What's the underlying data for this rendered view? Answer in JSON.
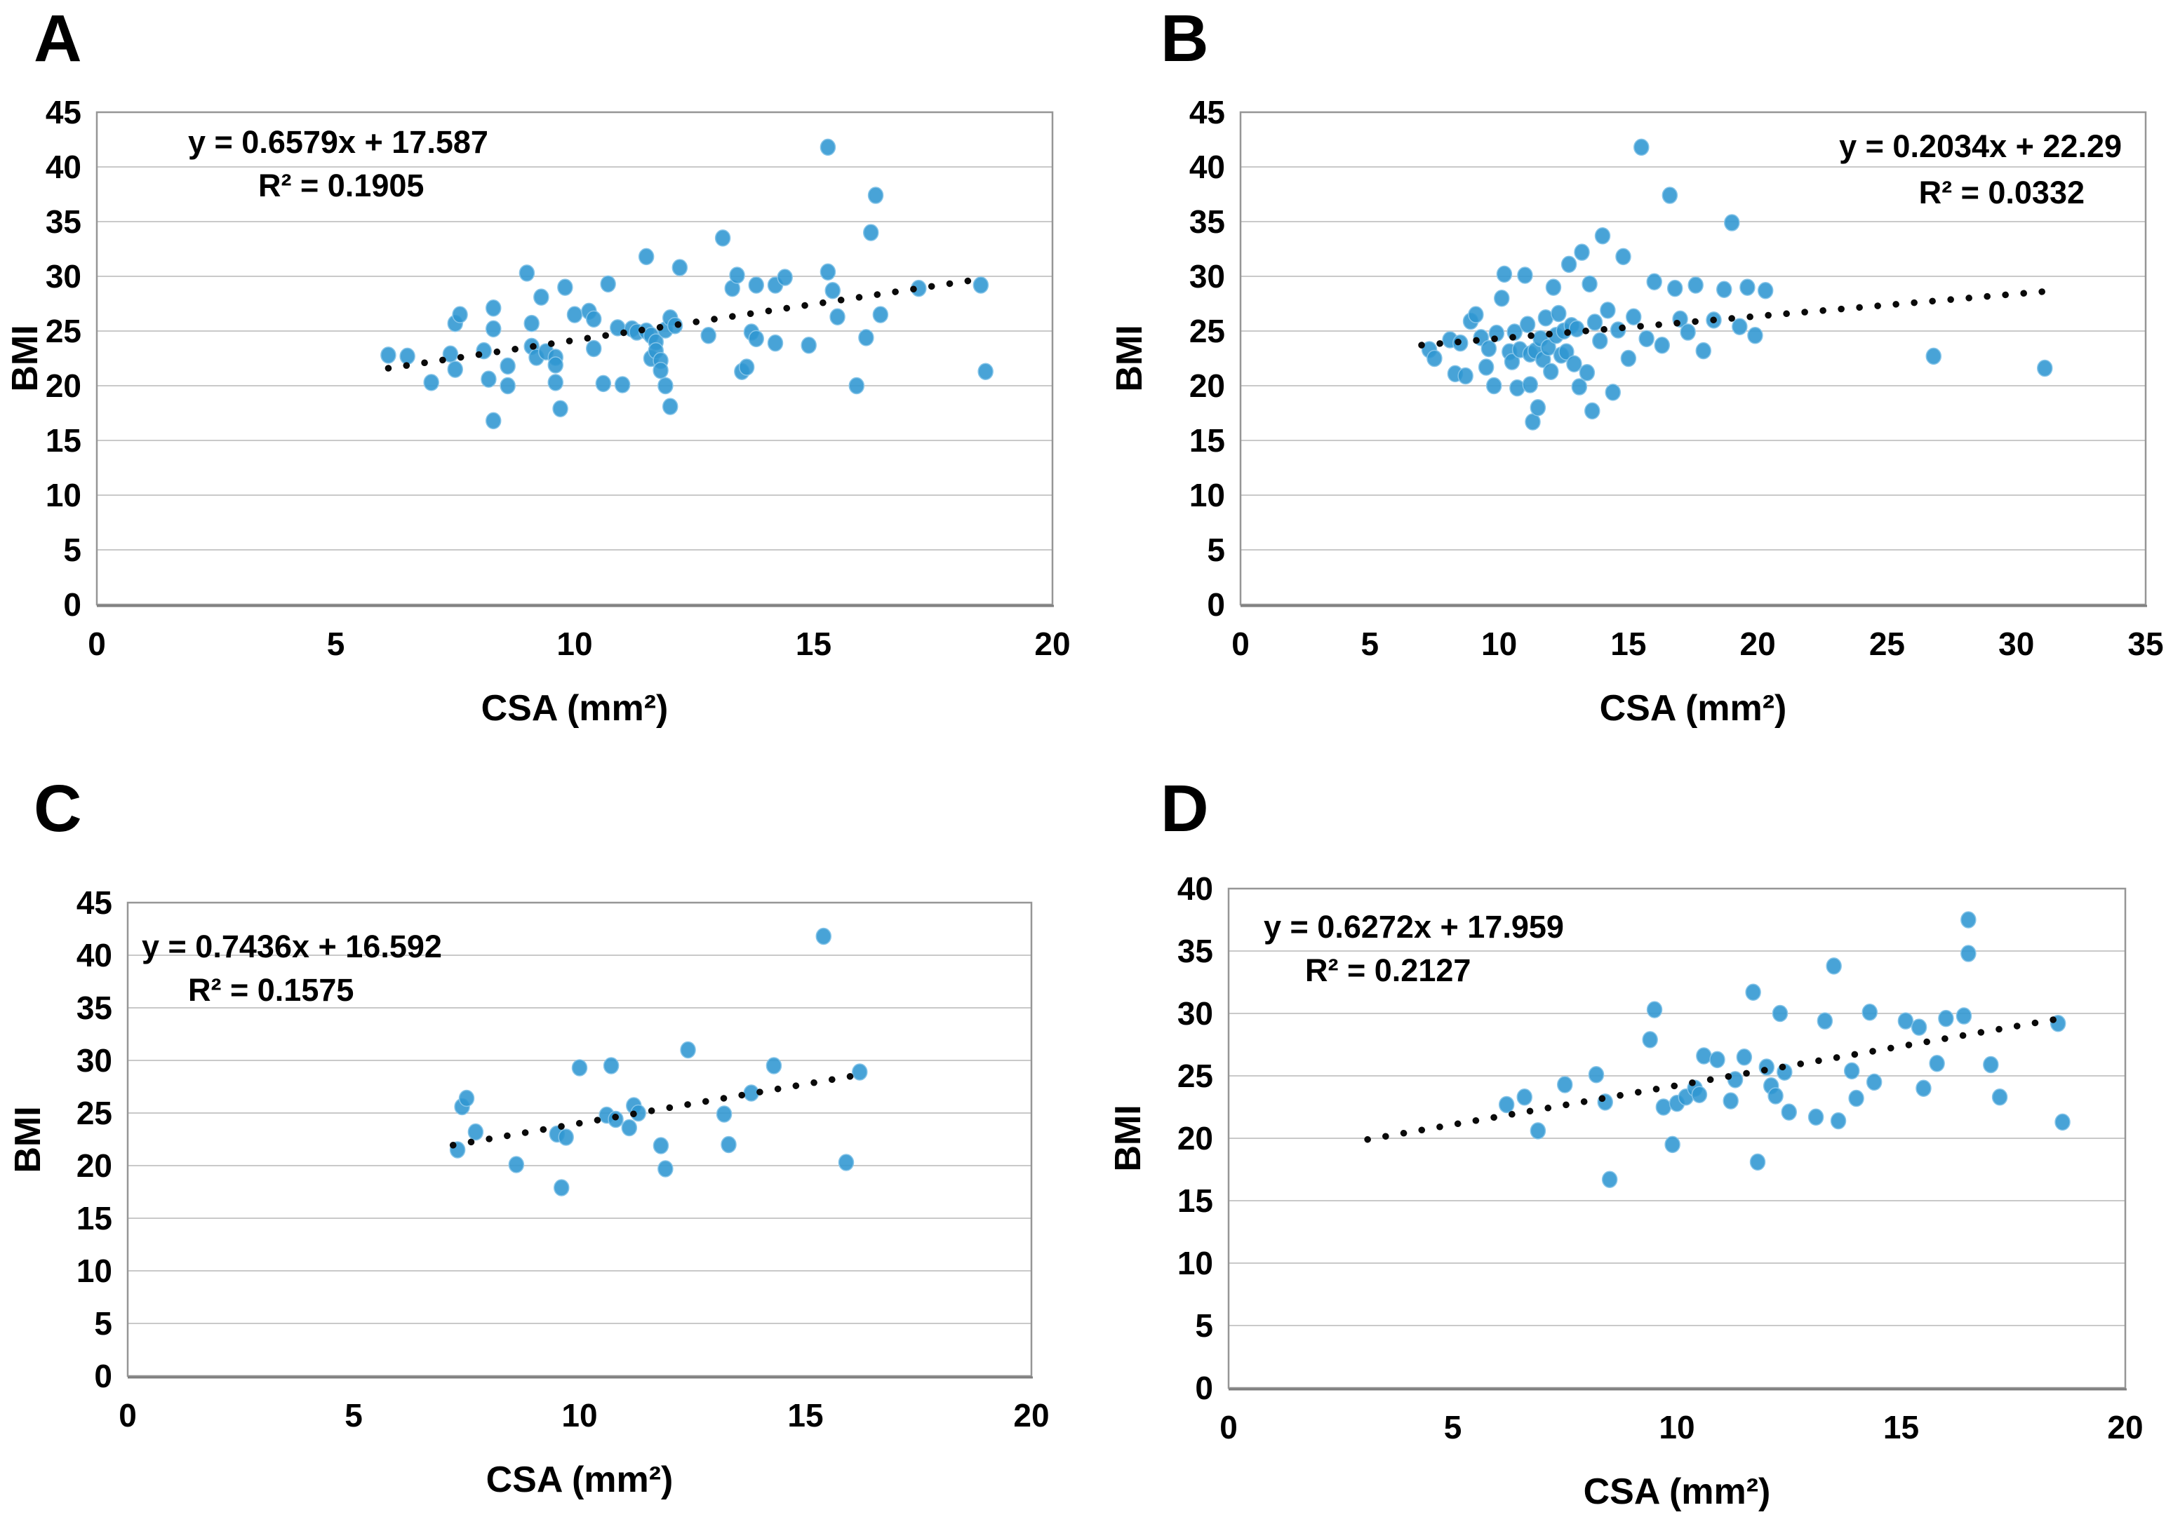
{
  "colors": {
    "marker": "#2f96d2",
    "marker_edge": "#85c4e8",
    "trendline": "#0a0a0a",
    "gridline": "#c9c9c9",
    "plot_border": "#969696",
    "axis_text": "#000000",
    "background": "#ffffff"
  },
  "chart_data": [
    {
      "type": "scatter",
      "panel_label": "A",
      "equation": "y = 0.6579x + 17.587",
      "r_squared": "R² = 0.1905",
      "equation_pos": "top-left",
      "xlabel": "CSA (mm²)",
      "ylabel": "BMI",
      "xlim": [
        0,
        20
      ],
      "ylim": [
        0,
        45
      ],
      "xticks": [
        0,
        5,
        10,
        15,
        20
      ],
      "yticks": [
        0,
        5,
        10,
        15,
        20,
        25,
        30,
        35,
        40,
        45
      ],
      "grid": "horizontal",
      "legend": "none",
      "trendline": {
        "slope": 0.6579,
        "intercept": 17.587,
        "x_start": 6.1,
        "x_end": 18.4,
        "style": "dotted"
      },
      "points": [
        [
          6.1,
          22.8
        ],
        [
          6.5,
          22.7
        ],
        [
          7.0,
          20.3
        ],
        [
          7.4,
          22.9
        ],
        [
          7.5,
          21.5
        ],
        [
          7.5,
          25.7
        ],
        [
          7.6,
          26.5
        ],
        [
          8.1,
          23.2
        ],
        [
          8.2,
          20.6
        ],
        [
          8.3,
          27.1
        ],
        [
          8.3,
          25.2
        ],
        [
          8.3,
          16.8
        ],
        [
          8.6,
          21.8
        ],
        [
          8.6,
          20.0
        ],
        [
          9.0,
          30.3
        ],
        [
          9.1,
          25.7
        ],
        [
          9.1,
          23.6
        ],
        [
          9.2,
          22.6
        ],
        [
          9.3,
          28.1
        ],
        [
          9.4,
          23.1
        ],
        [
          9.6,
          22.6
        ],
        [
          9.6,
          21.9
        ],
        [
          9.6,
          20.3
        ],
        [
          9.7,
          17.9
        ],
        [
          9.8,
          29.0
        ],
        [
          10.0,
          26.5
        ],
        [
          10.3,
          26.8
        ],
        [
          10.4,
          26.1
        ],
        [
          10.4,
          23.4
        ],
        [
          10.6,
          20.2
        ],
        [
          10.7,
          29.3
        ],
        [
          10.9,
          25.3
        ],
        [
          11.0,
          20.1
        ],
        [
          11.2,
          25.2
        ],
        [
          11.3,
          24.9
        ],
        [
          11.5,
          31.8
        ],
        [
          11.5,
          25.0
        ],
        [
          11.6,
          24.6
        ],
        [
          11.6,
          22.5
        ],
        [
          11.7,
          24.0
        ],
        [
          11.7,
          23.2
        ],
        [
          11.8,
          22.3
        ],
        [
          11.8,
          21.4
        ],
        [
          11.9,
          25.1
        ],
        [
          11.9,
          20.0
        ],
        [
          12.0,
          18.1
        ],
        [
          12.0,
          26.2
        ],
        [
          12.1,
          25.5
        ],
        [
          12.2,
          30.8
        ],
        [
          12.8,
          24.6
        ],
        [
          13.1,
          33.5
        ],
        [
          13.3,
          28.9
        ],
        [
          13.4,
          30.1
        ],
        [
          13.5,
          21.3
        ],
        [
          13.6,
          21.7
        ],
        [
          13.7,
          24.9
        ],
        [
          13.8,
          29.2
        ],
        [
          13.8,
          24.3
        ],
        [
          14.2,
          29.2
        ],
        [
          14.2,
          23.9
        ],
        [
          14.4,
          29.9
        ],
        [
          14.9,
          23.7
        ],
        [
          15.3,
          41.8
        ],
        [
          15.3,
          30.4
        ],
        [
          15.4,
          28.7
        ],
        [
          15.5,
          26.3
        ],
        [
          15.9,
          20.0
        ],
        [
          16.1,
          24.4
        ],
        [
          16.3,
          37.4
        ],
        [
          16.2,
          34.0
        ],
        [
          16.4,
          26.5
        ],
        [
          17.2,
          28.9
        ],
        [
          18.5,
          29.2
        ],
        [
          18.6,
          21.3
        ]
      ]
    },
    {
      "type": "scatter",
      "panel_label": "B",
      "equation": "y = 0.2034x + 22.29",
      "r_squared": "R² = 0.0332",
      "equation_pos": "top-right",
      "xlabel": "CSA (mm²)",
      "ylabel": "BMI",
      "xlim": [
        0,
        35
      ],
      "ylim": [
        0,
        45
      ],
      "xticks": [
        0,
        5,
        10,
        15,
        20,
        25,
        30,
        35
      ],
      "yticks": [
        0,
        5,
        10,
        15,
        20,
        25,
        30,
        35,
        40,
        45
      ],
      "grid": "horizontal",
      "legend": "none",
      "trendline": {
        "slope": 0.2034,
        "intercept": 22.29,
        "x_start": 7.0,
        "x_end": 31.0,
        "style": "dotted"
      },
      "points": [
        [
          7.3,
          23.3
        ],
        [
          7.5,
          22.5
        ],
        [
          8.1,
          24.2
        ],
        [
          8.3,
          21.1
        ],
        [
          8.5,
          23.9
        ],
        [
          8.7,
          20.9
        ],
        [
          8.9,
          25.9
        ],
        [
          9.1,
          26.5
        ],
        [
          9.3,
          24.4
        ],
        [
          9.5,
          21.7
        ],
        [
          9.6,
          23.4
        ],
        [
          9.8,
          20.0
        ],
        [
          9.9,
          24.8
        ],
        [
          10.1,
          28.0
        ],
        [
          10.2,
          30.2
        ],
        [
          10.4,
          23.1
        ],
        [
          10.5,
          22.2
        ],
        [
          10.6,
          24.9
        ],
        [
          10.7,
          19.8
        ],
        [
          10.8,
          23.3
        ],
        [
          11.0,
          30.1
        ],
        [
          11.1,
          25.6
        ],
        [
          11.2,
          22.9
        ],
        [
          11.2,
          20.1
        ],
        [
          11.3,
          16.7
        ],
        [
          11.4,
          23.2
        ],
        [
          11.5,
          18.0
        ],
        [
          11.6,
          24.3
        ],
        [
          11.7,
          22.4
        ],
        [
          11.8,
          26.2
        ],
        [
          11.9,
          23.5
        ],
        [
          12.0,
          21.3
        ],
        [
          12.1,
          29.0
        ],
        [
          12.2,
          24.6
        ],
        [
          12.3,
          26.6
        ],
        [
          12.4,
          22.8
        ],
        [
          12.5,
          25.0
        ],
        [
          12.6,
          23.1
        ],
        [
          12.7,
          31.1
        ],
        [
          12.8,
          25.5
        ],
        [
          12.9,
          22.0
        ],
        [
          13.0,
          25.2
        ],
        [
          13.1,
          19.9
        ],
        [
          13.2,
          32.2
        ],
        [
          13.4,
          21.2
        ],
        [
          13.5,
          29.3
        ],
        [
          13.6,
          17.7
        ],
        [
          13.7,
          25.8
        ],
        [
          13.9,
          24.1
        ],
        [
          14.0,
          33.7
        ],
        [
          14.2,
          26.9
        ],
        [
          14.4,
          19.4
        ],
        [
          14.6,
          25.1
        ],
        [
          14.8,
          31.8
        ],
        [
          15.0,
          22.5
        ],
        [
          15.2,
          26.3
        ],
        [
          15.5,
          41.8
        ],
        [
          15.7,
          24.3
        ],
        [
          16.0,
          29.5
        ],
        [
          16.3,
          23.7
        ],
        [
          16.6,
          37.4
        ],
        [
          16.8,
          28.9
        ],
        [
          17.0,
          26.1
        ],
        [
          17.3,
          24.9
        ],
        [
          17.6,
          29.2
        ],
        [
          17.9,
          23.2
        ],
        [
          18.3,
          26.0
        ],
        [
          18.7,
          28.8
        ],
        [
          19.0,
          34.9
        ],
        [
          19.3,
          25.4
        ],
        [
          19.6,
          29.0
        ],
        [
          19.9,
          24.6
        ],
        [
          20.3,
          28.7
        ],
        [
          26.8,
          22.7
        ],
        [
          31.1,
          21.6
        ]
      ]
    },
    {
      "type": "scatter",
      "panel_label": "C",
      "equation": "y = 0.7436x + 16.592",
      "r_squared": "R² = 0.1575",
      "equation_pos": "top-left",
      "xlabel": "CSA (mm²)",
      "ylabel": "BMI",
      "xlim": [
        0,
        20
      ],
      "ylim": [
        0,
        45
      ],
      "xticks": [
        0,
        5,
        10,
        15,
        20
      ],
      "yticks": [
        0,
        5,
        10,
        15,
        20,
        25,
        30,
        35,
        40,
        45
      ],
      "grid": "horizontal",
      "legend": "none",
      "trendline": {
        "slope": 0.7436,
        "intercept": 16.592,
        "x_start": 7.2,
        "x_end": 16.2,
        "style": "dotted"
      },
      "points": [
        [
          7.3,
          21.5
        ],
        [
          7.4,
          25.6
        ],
        [
          7.5,
          26.4
        ],
        [
          7.7,
          23.2
        ],
        [
          8.6,
          20.1
        ],
        [
          9.5,
          23.0
        ],
        [
          9.6,
          17.9
        ],
        [
          9.7,
          22.7
        ],
        [
          10.0,
          29.3
        ],
        [
          10.6,
          24.8
        ],
        [
          10.7,
          29.5
        ],
        [
          10.8,
          24.4
        ],
        [
          11.1,
          23.6
        ],
        [
          11.2,
          25.7
        ],
        [
          11.3,
          25.0
        ],
        [
          11.8,
          21.9
        ],
        [
          11.9,
          19.7
        ],
        [
          12.4,
          31.0
        ],
        [
          13.2,
          24.9
        ],
        [
          13.3,
          22.0
        ],
        [
          13.8,
          26.9
        ],
        [
          14.3,
          29.5
        ],
        [
          15.4,
          41.8
        ],
        [
          15.9,
          20.3
        ],
        [
          16.2,
          28.9
        ]
      ]
    },
    {
      "type": "scatter",
      "panel_label": "D",
      "equation": "y = 0.6272x + 17.959",
      "r_squared": "R² = 0.2127",
      "equation_pos": "top-left",
      "xlabel": "CSA (mm²)",
      "ylabel": "BMI",
      "xlim": [
        0,
        20
      ],
      "ylim": [
        0,
        40
      ],
      "xticks": [
        0,
        5,
        10,
        15,
        20
      ],
      "yticks": [
        0,
        5,
        10,
        15,
        20,
        25,
        30,
        35,
        40
      ],
      "grid": "horizontal",
      "legend": "none",
      "trendline": {
        "slope": 0.6272,
        "intercept": 17.959,
        "x_start": 3.1,
        "x_end": 18.7,
        "style": "dotted"
      },
      "points": [
        [
          6.2,
          22.7
        ],
        [
          6.6,
          23.3
        ],
        [
          6.9,
          20.6
        ],
        [
          7.5,
          24.3
        ],
        [
          8.2,
          25.1
        ],
        [
          8.4,
          22.9
        ],
        [
          8.5,
          16.7
        ],
        [
          9.4,
          27.9
        ],
        [
          9.5,
          30.3
        ],
        [
          9.7,
          22.5
        ],
        [
          9.9,
          19.5
        ],
        [
          10.0,
          22.8
        ],
        [
          10.2,
          23.3
        ],
        [
          10.4,
          24.0
        ],
        [
          10.5,
          23.5
        ],
        [
          10.6,
          26.6
        ],
        [
          10.9,
          26.3
        ],
        [
          11.2,
          23.0
        ],
        [
          11.3,
          24.7
        ],
        [
          11.5,
          26.5
        ],
        [
          11.7,
          31.7
        ],
        [
          11.8,
          18.1
        ],
        [
          12.0,
          25.7
        ],
        [
          12.1,
          24.2
        ],
        [
          12.2,
          23.4
        ],
        [
          12.3,
          30.0
        ],
        [
          12.4,
          25.3
        ],
        [
          12.5,
          22.1
        ],
        [
          13.1,
          21.7
        ],
        [
          13.3,
          29.4
        ],
        [
          13.5,
          33.8
        ],
        [
          13.6,
          21.4
        ],
        [
          13.9,
          25.4
        ],
        [
          14.0,
          23.2
        ],
        [
          14.3,
          30.1
        ],
        [
          14.4,
          24.5
        ],
        [
          15.1,
          29.4
        ],
        [
          15.4,
          28.9
        ],
        [
          15.5,
          24.0
        ],
        [
          15.8,
          26.0
        ],
        [
          16.0,
          29.6
        ],
        [
          16.4,
          29.8
        ],
        [
          16.5,
          37.5
        ],
        [
          16.5,
          34.8
        ],
        [
          17.0,
          25.9
        ],
        [
          17.2,
          23.3
        ],
        [
          18.5,
          29.2
        ],
        [
          18.6,
          21.3
        ]
      ]
    }
  ]
}
